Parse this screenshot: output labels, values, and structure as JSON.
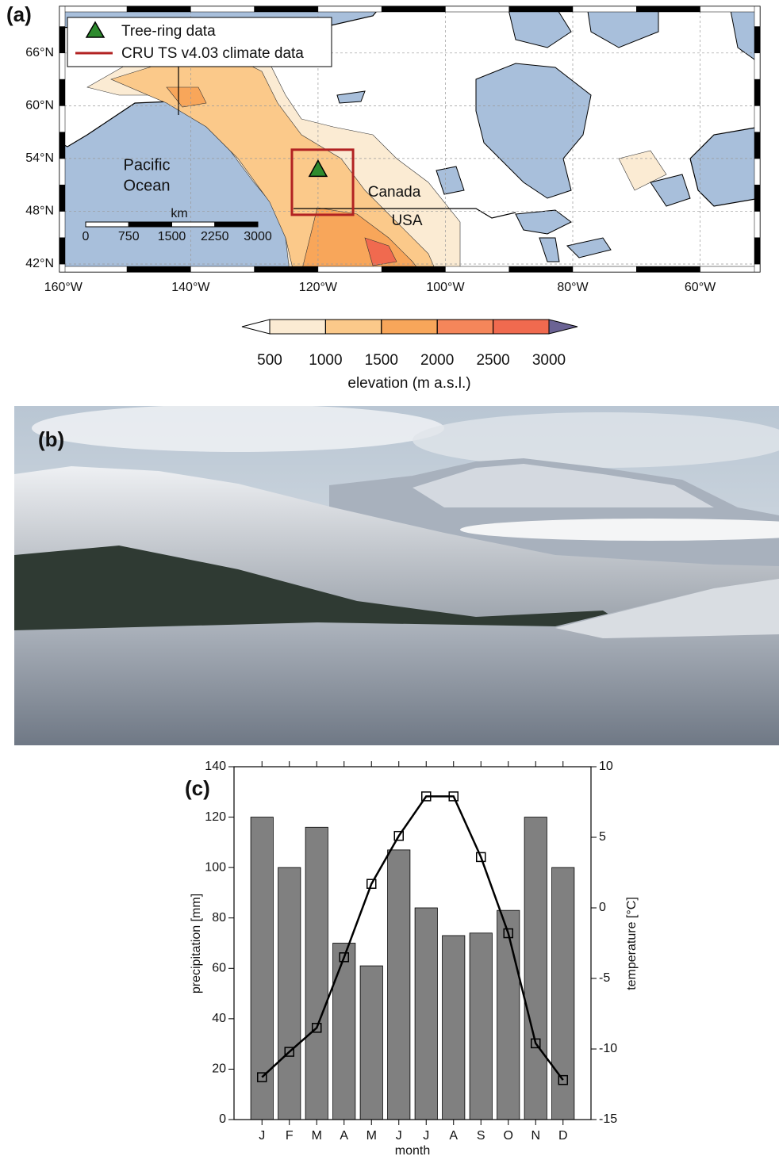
{
  "panel_a": {
    "label": "(a)",
    "legend": [
      "Tree-ring data",
      "CRU TS v4.03 climate data"
    ],
    "ocean_label": [
      "Pacific",
      "Ocean"
    ],
    "country_labels": [
      "Canada",
      "USA"
    ],
    "scale_bar": {
      "unit": "km",
      "ticks": [
        0,
        750,
        1500,
        2250,
        3000
      ]
    },
    "xlim": [
      -160.6,
      -50.6
    ],
    "ylim": [
      41.1,
      71.3
    ],
    "lat_ticks": [
      {
        "value": 66,
        "label": "66°N"
      },
      {
        "value": 60,
        "label": "60°N"
      },
      {
        "value": 54,
        "label": "54°N"
      },
      {
        "value": 48,
        "label": "48°N"
      },
      {
        "value": 42,
        "label": "42°N"
      }
    ],
    "lon_ticks": [
      {
        "value": -160,
        "label": "160°W"
      },
      {
        "value": -140,
        "label": "140°W"
      },
      {
        "value": -120,
        "label": "120°W"
      },
      {
        "value": -100,
        "label": "100°W"
      },
      {
        "value": -80,
        "label": "80°W"
      },
      {
        "value": -60,
        "label": "60°W"
      }
    ],
    "site": {
      "lon": -120.0,
      "lat": 52.6,
      "color": "#2e8b2e"
    },
    "box": {
      "lon": [
        -124.1,
        -114.5
      ],
      "lat": [
        47.6,
        55.0
      ],
      "color": "#b22222"
    },
    "colorbar": {
      "ticks": [
        500,
        1000,
        1500,
        2000,
        2500,
        3000
      ],
      "colors": [
        "#fbebd3",
        "#fbc98a",
        "#f8a65a",
        "#f5865a",
        "#f06a4f"
      ],
      "extend_colors": [
        "#ffffff",
        "#6b6394"
      ],
      "label": "elevation (m a.s.l.)"
    }
  },
  "panel_b": {
    "label": "(b)"
  },
  "chart_data": {
    "type": "bar",
    "label": "(c)",
    "categories": [
      "J",
      "F",
      "M",
      "A",
      "M",
      "J",
      "J",
      "A",
      "S",
      "O",
      "N",
      "D"
    ],
    "xlabel": "month",
    "ylabel": "precipitation [mm]",
    "y2label": "temperature [°C]",
    "ylim": [
      0,
      140
    ],
    "yticks": [
      0,
      20,
      40,
      60,
      80,
      100,
      120,
      140
    ],
    "y2lim": [
      -15,
      10
    ],
    "y2ticks": [
      -15,
      -10,
      -5,
      0,
      5,
      10
    ],
    "series": [
      {
        "type": "bar",
        "color": "#808080",
        "values": [
          120,
          100,
          116,
          70,
          61,
          107,
          84,
          73,
          74,
          83,
          120,
          100
        ]
      },
      {
        "type": "line",
        "axis": "y2",
        "color": "#000000",
        "marker": "square",
        "values": [
          -12.0,
          -10.2,
          -8.5,
          -3.5,
          1.7,
          5.1,
          7.9,
          7.9,
          3.6,
          -1.8,
          -9.6,
          -12.2
        ]
      }
    ]
  }
}
